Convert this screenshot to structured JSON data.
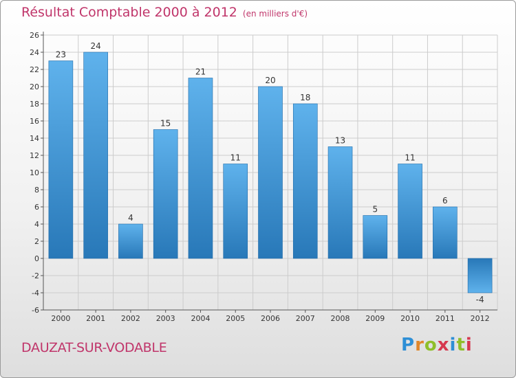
{
  "header": {
    "title": "Résultat Comptable 2000 à 2012",
    "subtitle": "(en milliers d'€)"
  },
  "footer": {
    "commune": "DAUZAT-SUR-VODABLE",
    "logo_letters": [
      "P",
      "r",
      "o",
      "x",
      "i",
      "t",
      "i"
    ],
    "logo_colors": [
      "#2e8fd6",
      "#e0862a",
      "#8fbf2a",
      "#d6384f",
      "#2e8fd6",
      "#8fbf2a",
      "#d6384f"
    ]
  },
  "colors": {
    "bar_light": "#5fb2ec",
    "bar_dark": "#2878b8",
    "grid": "#cccccc"
  },
  "chart_data": {
    "type": "bar",
    "title": "Résultat Comptable 2000 à 2012",
    "subtitle": "(en milliers d'€)",
    "categories": [
      "2000",
      "2001",
      "2002",
      "2003",
      "2004",
      "2005",
      "2006",
      "2007",
      "2008",
      "2009",
      "2010",
      "2011",
      "2012"
    ],
    "values": [
      23,
      24,
      4,
      15,
      21,
      11,
      20,
      18,
      13,
      5,
      11,
      6,
      -4
    ],
    "ylim": [
      -6,
      26
    ],
    "yticks": [
      26,
      24,
      22,
      20,
      18,
      16,
      14,
      12,
      10,
      8,
      6,
      4,
      2,
      0,
      -2,
      -4,
      -6
    ],
    "grid": true,
    "xlabel": "",
    "ylabel": ""
  }
}
